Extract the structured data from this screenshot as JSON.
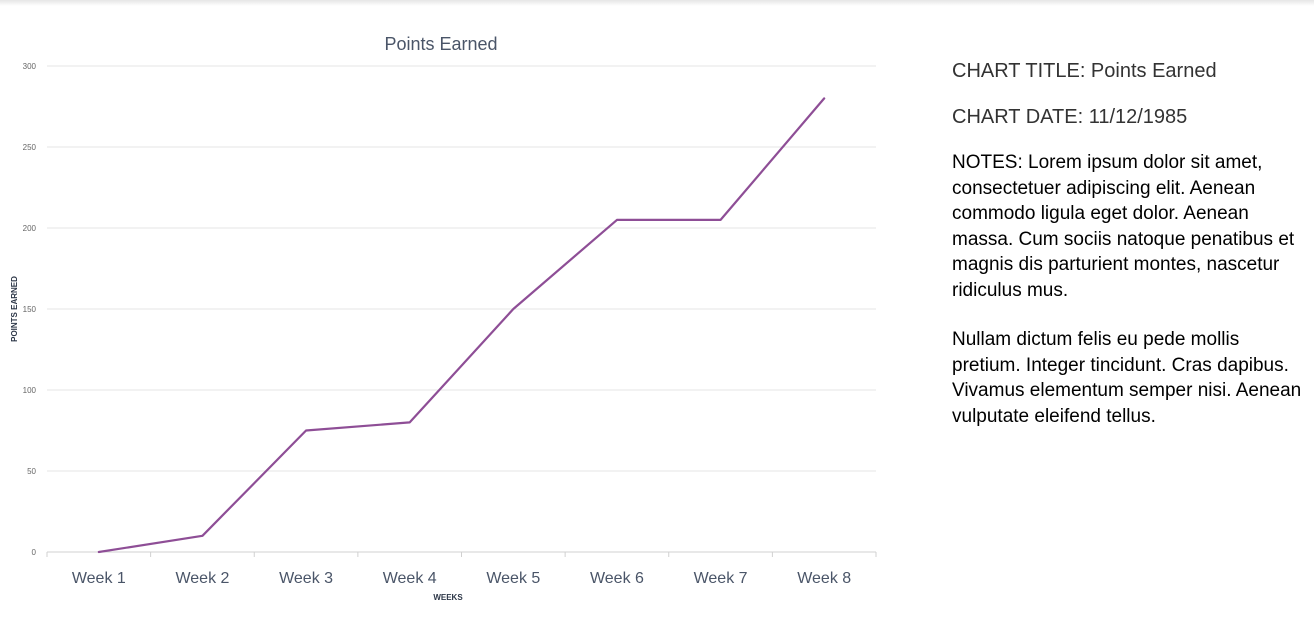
{
  "colors": {
    "line": "#8e4e96",
    "grid": "#e5e5e5",
    "axis": "#d0d0d0"
  },
  "chart_data": {
    "type": "line",
    "title": "Points Earned",
    "xlabel": "WEEKS",
    "ylabel": "POINTS EARNED",
    "categories": [
      "Week 1",
      "Week 2",
      "Week 3",
      "Week 4",
      "Week 5",
      "Week 6",
      "Week 7",
      "Week 8"
    ],
    "values": [
      0,
      10,
      75,
      80,
      150,
      205,
      205,
      280
    ],
    "ylim": [
      0,
      300
    ],
    "yticks": [
      0,
      50,
      100,
      150,
      200,
      250,
      300
    ],
    "grid": true,
    "legend": "none"
  },
  "notes_panel": {
    "title_line": "CHART TITLE: Points Earned",
    "date_line": "CHART DATE: 11/12/1985",
    "notes_para1": "NOTES: Lorem ipsum dolor sit amet, consectetuer adipiscing elit. Aenean commodo ligula eget dolor. Aenean massa. Cum sociis natoque penatibus et magnis dis parturient montes, nascetur ridiculus mus.",
    "notes_para2": "Nullam dictum felis eu pede mollis pretium. Integer tincidunt. Cras dapibus. Vivamus elementum semper nisi. Aenean vulputate eleifend tellus."
  }
}
